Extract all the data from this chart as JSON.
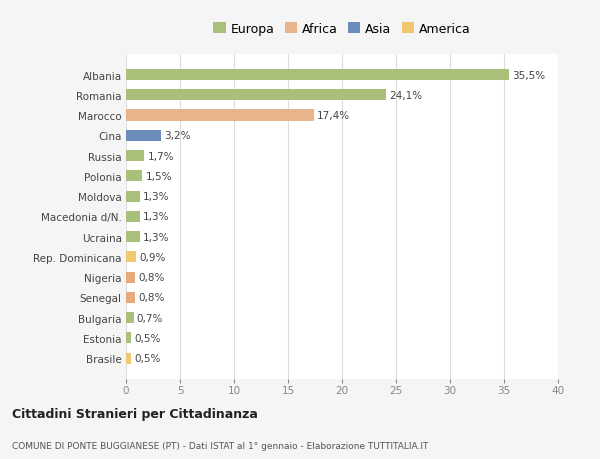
{
  "countries": [
    "Albania",
    "Romania",
    "Marocco",
    "Cina",
    "Russia",
    "Polonia",
    "Moldova",
    "Macedonia d/N.",
    "Ucraina",
    "Rep. Dominicana",
    "Nigeria",
    "Senegal",
    "Bulgaria",
    "Estonia",
    "Brasile"
  ],
  "values": [
    35.5,
    24.1,
    17.4,
    3.2,
    1.7,
    1.5,
    1.3,
    1.3,
    1.3,
    0.9,
    0.8,
    0.8,
    0.7,
    0.5,
    0.5
  ],
  "labels": [
    "35,5%",
    "24,1%",
    "17,4%",
    "3,2%",
    "1,7%",
    "1,5%",
    "1,3%",
    "1,3%",
    "1,3%",
    "0,9%",
    "0,8%",
    "0,8%",
    "0,7%",
    "0,5%",
    "0,5%"
  ],
  "categories": [
    "Europa",
    "Africa",
    "Asia",
    "America"
  ],
  "bar_colors": [
    "#a8c07a",
    "#a8c07a",
    "#e8b48c",
    "#6b8cba",
    "#a8c07a",
    "#a8c07a",
    "#a8c07a",
    "#a8c07a",
    "#a8c07a",
    "#f0c870",
    "#e8a87a",
    "#e8a87a",
    "#a8c07a",
    "#a8c07a",
    "#f0c870"
  ],
  "legend_colors": [
    "#a8c07a",
    "#e8b48c",
    "#6b8cba",
    "#f0c870"
  ],
  "xlim": [
    0,
    40
  ],
  "xticks": [
    0,
    5,
    10,
    15,
    20,
    25,
    30,
    35,
    40
  ],
  "title": "Cittadini Stranieri per Cittadinanza",
  "subtitle": "COMUNE DI PONTE BUGGIANESE (PT) - Dati ISTAT al 1° gennaio - Elaborazione TUTTITALIA.IT",
  "bg_color": "#f5f5f5",
  "plot_bg_color": "#ffffff",
  "grid_color": "#dddddd",
  "bar_height": 0.55
}
